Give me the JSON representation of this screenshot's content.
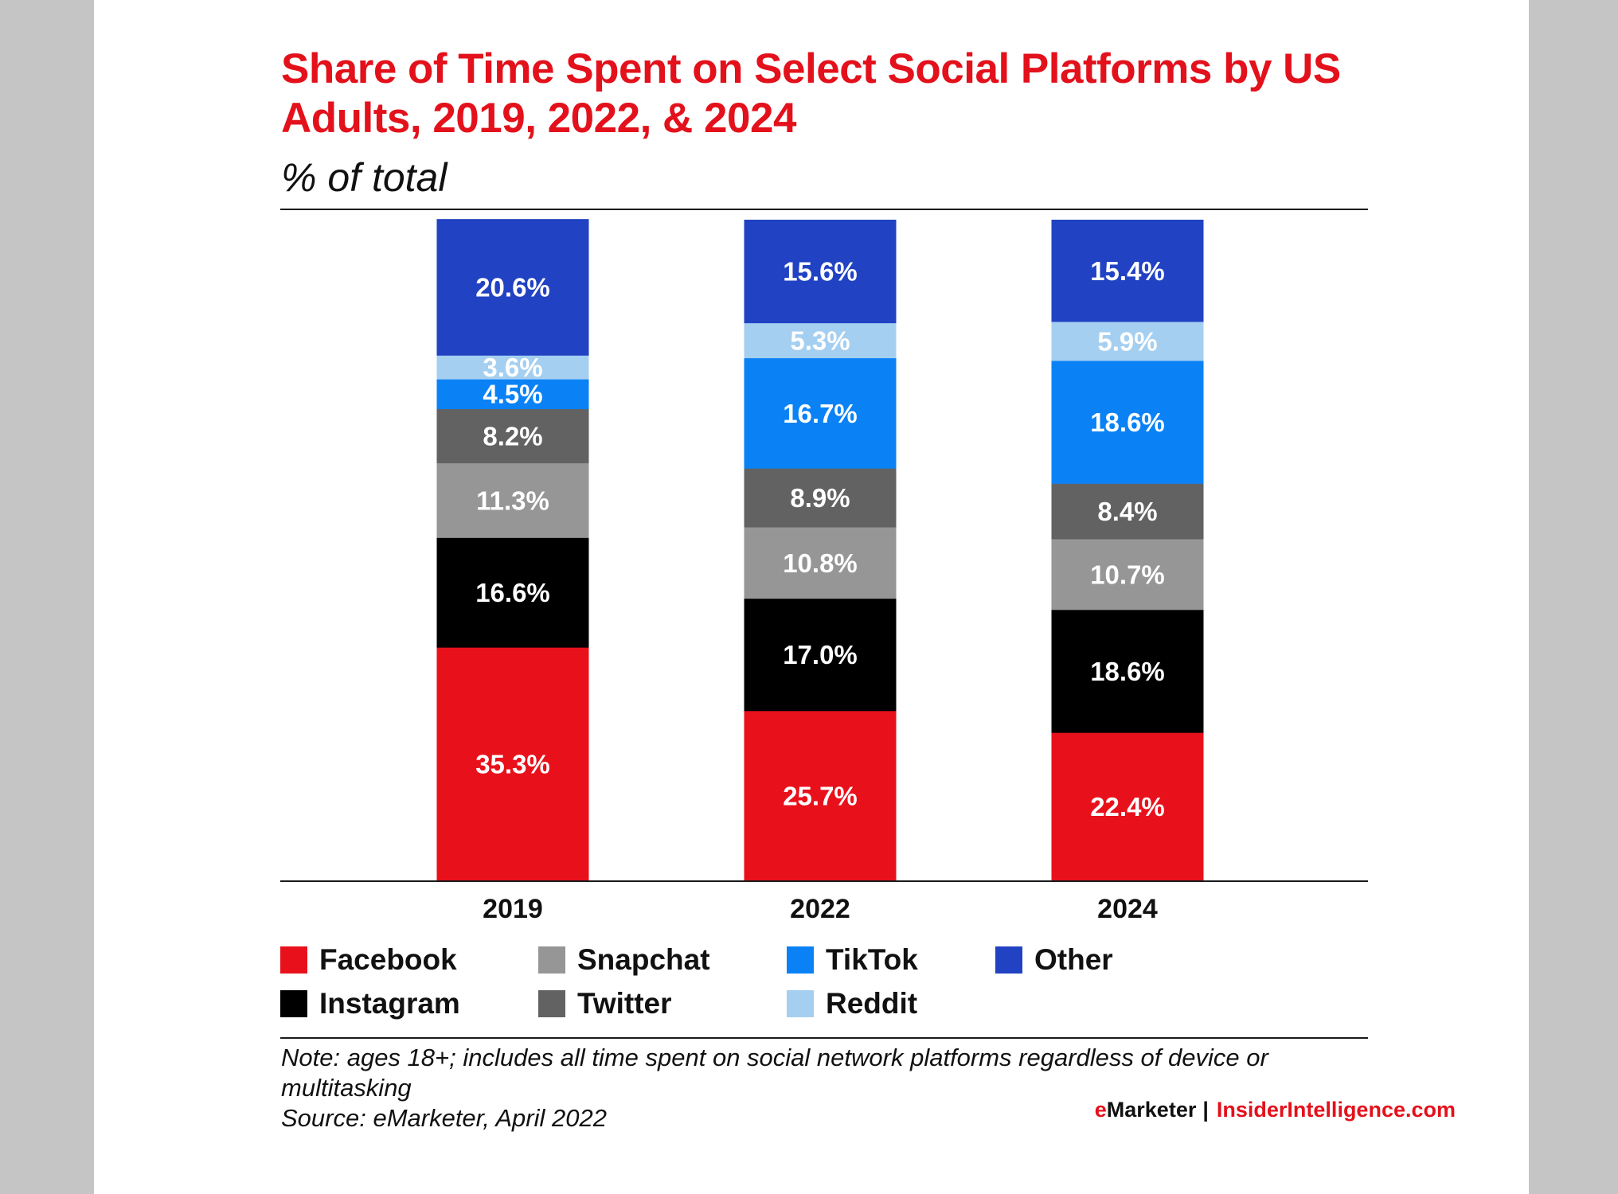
{
  "chart_data": {
    "type": "bar",
    "stacked": true,
    "title": "Share of Time Spent on Select Social Platforms by US Adults, 2019, 2022, & 2024",
    "subtitle": "% of total",
    "xlabel": "",
    "ylabel": "",
    "ylim": [
      0,
      100
    ],
    "categories": [
      "2019",
      "2022",
      "2024"
    ],
    "series": [
      {
        "name": "Facebook",
        "color": "#e8111b",
        "values": [
          35.3,
          25.7,
          22.4
        ]
      },
      {
        "name": "Instagram",
        "color": "#000000",
        "values": [
          16.6,
          17.0,
          18.6
        ]
      },
      {
        "name": "Snapchat",
        "color": "#969696",
        "values": [
          11.3,
          10.8,
          10.7
        ]
      },
      {
        "name": "Twitter",
        "color": "#626262",
        "values": [
          8.2,
          8.9,
          8.4
        ]
      },
      {
        "name": "TikTok",
        "color": "#0a82f5",
        "values": [
          4.5,
          16.7,
          18.6
        ]
      },
      {
        "name": "Reddit",
        "color": "#a5cff0",
        "values": [
          3.6,
          5.3,
          5.9
        ]
      },
      {
        "name": "Other",
        "color": "#2142c2",
        "values": [
          20.6,
          15.6,
          15.4
        ]
      }
    ],
    "legend": {
      "placement": "bottom",
      "items": [
        {
          "name": "Facebook",
          "color": "#e8111b"
        },
        {
          "name": "Snapchat",
          "color": "#969696"
        },
        {
          "name": "TikTok",
          "color": "#0a82f5"
        },
        {
          "name": "Other",
          "color": "#2142c2"
        },
        {
          "name": "Instagram",
          "color": "#000000"
        },
        {
          "name": "Twitter",
          "color": "#626262"
        },
        {
          "name": "Reddit",
          "color": "#a5cff0"
        }
      ]
    }
  },
  "footnote": {
    "note": "Note: ages 18+; includes all time spent on social network platforms regardless of device or multitasking",
    "source": "Source: eMarketer, April 2022"
  },
  "branding": {
    "emarketer_e": "e",
    "emarketer_rest": "Marketer",
    "separator": "|",
    "site": "InsiderIntelligence.com"
  }
}
